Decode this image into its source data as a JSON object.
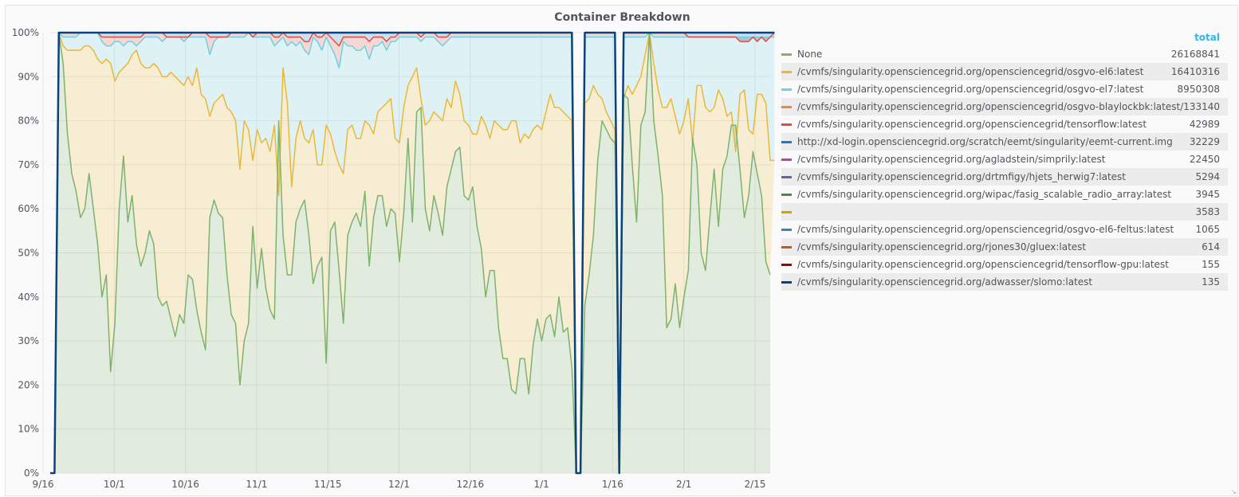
{
  "panel": {
    "title": "Container Breakdown"
  },
  "chart_data": {
    "type": "area",
    "stacking": "percent",
    "title": "Container Breakdown",
    "xlabel": "",
    "ylabel": "",
    "ylim": [
      0,
      100
    ],
    "grid": true,
    "legend_position": "right",
    "legend_value_header": "total",
    "x_ticks": [
      "9/16",
      "10/1",
      "10/16",
      "11/1",
      "11/15",
      "12/1",
      "12/16",
      "1/1",
      "1/16",
      "2/1",
      "2/15"
    ],
    "y_ticks": [
      "0%",
      "10%",
      "20%",
      "30%",
      "40%",
      "50%",
      "60%",
      "70%",
      "80%",
      "90%",
      "100%"
    ],
    "boundaries": {
      "none_top": [
        0,
        0,
        100,
        93,
        77,
        68,
        64,
        58,
        60,
        68,
        60,
        52,
        40,
        45,
        23,
        34,
        60,
        72,
        57,
        63,
        52,
        47,
        50,
        55,
        52,
        40,
        38,
        39,
        35,
        31,
        36,
        34,
        45,
        44,
        37,
        32,
        28,
        58,
        62,
        59,
        58,
        45,
        36,
        34,
        20,
        30,
        34,
        56,
        42,
        51,
        42,
        37,
        35,
        80,
        54,
        45,
        45,
        57,
        60,
        62,
        54,
        43,
        47,
        49,
        25,
        55,
        57,
        46,
        34,
        54,
        57,
        59,
        56,
        64,
        47,
        58,
        63,
        63,
        56,
        60,
        59,
        48,
        59,
        76,
        57,
        82,
        83,
        60,
        55,
        63,
        59,
        54,
        65,
        69,
        73,
        74,
        63,
        62,
        65,
        56,
        51,
        40,
        46,
        46,
        33,
        26,
        26,
        19,
        18,
        26,
        26,
        18,
        29,
        35,
        30,
        35,
        36,
        31,
        40,
        32,
        33,
        24,
        0,
        0,
        38,
        45,
        54,
        71,
        80,
        78,
        76,
        75,
        0,
        86,
        85,
        70,
        57,
        79,
        82,
        100,
        80,
        72,
        63,
        33,
        35,
        43,
        33,
        40,
        46,
        76,
        70,
        50,
        46,
        58,
        69,
        56,
        69,
        72,
        79,
        79,
        69,
        58,
        63,
        73,
        68,
        63,
        48,
        45
      ],
      "el6_top": [
        0,
        0,
        100,
        97,
        96,
        96,
        96,
        96,
        97,
        97,
        96,
        94,
        93,
        94,
        93,
        89,
        91,
        92,
        93,
        95,
        96,
        93,
        92,
        92,
        93,
        92,
        90,
        90,
        91,
        90,
        89,
        88,
        90,
        88,
        92,
        86,
        85,
        81,
        84,
        85,
        86,
        83,
        82,
        80,
        69,
        80,
        78,
        71,
        78,
        75,
        76,
        73,
        79,
        63,
        92,
        84,
        65,
        76,
        80,
        76,
        75,
        78,
        70,
        70,
        79,
        77,
        73,
        70,
        68,
        78,
        79,
        76,
        76,
        80,
        79,
        77,
        82,
        83,
        84,
        85,
        76,
        75,
        83,
        88,
        90,
        92,
        85,
        79,
        80,
        82,
        81,
        80,
        85,
        83,
        89,
        86,
        80,
        79,
        77,
        77,
        81,
        79,
        76,
        80,
        79,
        78,
        78,
        80,
        80,
        75,
        77,
        76,
        78,
        79,
        78,
        82,
        86,
        83,
        83,
        82,
        81,
        80,
        0,
        0,
        84,
        85,
        88,
        86,
        85,
        82,
        80,
        78,
        0,
        85,
        88,
        86,
        88,
        90,
        95,
        100,
        93,
        87,
        83,
        83,
        85,
        81,
        77,
        80,
        85,
        75,
        88,
        88,
        83,
        82,
        83,
        87,
        85,
        81,
        82,
        73,
        86,
        87,
        78,
        77,
        86,
        86,
        84,
        71,
        71
      ],
      "el7_top": [
        0,
        0,
        100,
        99,
        99,
        99,
        99,
        100,
        100,
        100,
        100,
        100,
        98,
        97,
        97,
        98,
        98,
        97,
        98,
        98,
        97,
        98,
        99,
        99,
        99,
        99,
        98,
        99,
        99,
        99,
        99,
        98,
        99,
        99,
        99,
        99,
        99,
        95,
        98,
        99,
        99,
        99,
        99,
        99,
        99,
        99,
        100,
        99,
        99,
        99,
        99,
        99,
        97,
        98,
        99,
        97,
        98,
        97,
        98,
        96,
        95,
        99,
        98,
        96,
        99,
        97,
        95,
        92,
        98,
        97,
        97,
        96,
        96,
        97,
        94,
        97,
        97,
        98,
        96,
        98,
        98,
        99,
        99,
        99,
        99,
        99,
        98,
        99,
        99,
        99,
        98,
        97,
        98,
        99,
        99,
        99,
        99,
        99,
        99,
        99,
        99,
        99,
        99,
        99,
        99,
        99,
        99,
        99,
        99,
        99,
        99,
        99,
        99,
        99,
        99,
        99,
        99,
        99,
        99,
        99,
        99,
        99,
        0,
        0,
        99,
        99,
        99,
        99,
        99,
        99,
        99,
        99,
        0,
        99,
        99,
        99,
        99,
        99,
        99,
        100,
        99,
        99,
        99,
        99,
        99,
        99,
        99,
        99,
        99,
        99,
        99,
        99,
        99,
        99,
        99,
        99,
        99,
        99,
        99,
        99,
        99,
        99,
        99,
        99,
        99,
        99,
        99,
        99,
        99
      ],
      "red_top": [
        0,
        0,
        100,
        100,
        100,
        100,
        100,
        100,
        100,
        100,
        100,
        100,
        99,
        99,
        99,
        99,
        99,
        99,
        99,
        99,
        99,
        99,
        100,
        100,
        100,
        100,
        100,
        99,
        99,
        99,
        99,
        99,
        99,
        100,
        100,
        100,
        100,
        99,
        99,
        99,
        99,
        99,
        100,
        100,
        100,
        100,
        100,
        99,
        100,
        100,
        100,
        100,
        99,
        99,
        100,
        99,
        99,
        99,
        99,
        98,
        98,
        100,
        99,
        99,
        100,
        99,
        98,
        97,
        99,
        99,
        99,
        99,
        99,
        99,
        98,
        99,
        99,
        99,
        98,
        99,
        99,
        100,
        100,
        100,
        100,
        100,
        99,
        100,
        100,
        100,
        99,
        99,
        99,
        100,
        100,
        100,
        100,
        100,
        100,
        100,
        100,
        100,
        100,
        100,
        100,
        100,
        100,
        100,
        100,
        100,
        100,
        100,
        100,
        100,
        100,
        100,
        100,
        100,
        100,
        100,
        100,
        100,
        0,
        0,
        100,
        100,
        100,
        100,
        100,
        100,
        100,
        100,
        0,
        100,
        100,
        100,
        100,
        100,
        100,
        100,
        100,
        100,
        100,
        100,
        100,
        100,
        100,
        100,
        99,
        99,
        99,
        99,
        99,
        99,
        99,
        99,
        99,
        99,
        99,
        99,
        98,
        98,
        98,
        99,
        98,
        99,
        98,
        99,
        100
      ],
      "navy_total": [
        0,
        0,
        100,
        100,
        100,
        100,
        100,
        100,
        100,
        100,
        100,
        100,
        100,
        100,
        100,
        100,
        100,
        100,
        100,
        100,
        100,
        100,
        100,
        100,
        100,
        100,
        100,
        100,
        100,
        100,
        100,
        100,
        100,
        100,
        100,
        100,
        100,
        100,
        100,
        100,
        100,
        100,
        100,
        100,
        100,
        100,
        100,
        100,
        100,
        100,
        100,
        100,
        100,
        100,
        100,
        100,
        100,
        100,
        100,
        100,
        100,
        100,
        100,
        100,
        100,
        100,
        100,
        100,
        100,
        100,
        100,
        100,
        100,
        100,
        100,
        100,
        100,
        100,
        100,
        100,
        100,
        100,
        100,
        100,
        100,
        100,
        100,
        100,
        100,
        100,
        100,
        100,
        100,
        100,
        100,
        100,
        100,
        100,
        100,
        100,
        100,
        100,
        100,
        100,
        100,
        100,
        100,
        100,
        100,
        100,
        100,
        100,
        100,
        100,
        100,
        100,
        100,
        100,
        100,
        100,
        100,
        100,
        0,
        0,
        100,
        100,
        100,
        100,
        100,
        100,
        100,
        100,
        0,
        100,
        100,
        100,
        100,
        100,
        100,
        100,
        100,
        100,
        100,
        100,
        100,
        100,
        100,
        100,
        100,
        100,
        100,
        100,
        100,
        100,
        100,
        100,
        100,
        100,
        100,
        100,
        100,
        100,
        100,
        100,
        100,
        100,
        100,
        100,
        100
      ]
    },
    "series": [
      {
        "name": "None",
        "color": "#7eb26d",
        "total": "26168841"
      },
      {
        "name": "/cvmfs/singularity.opensciencegrid.org/opensciencegrid/osgvo-el6:latest",
        "color": "#eab839",
        "total": "16410316"
      },
      {
        "name": "/cvmfs/singularity.opensciencegrid.org/opensciencegrid/osgvo-el7:latest",
        "color": "#6ed0e0",
        "total": "8950308"
      },
      {
        "name": "/cvmfs/singularity.opensciencegrid.org/opensciencegrid/osgvo-blaylockbk:latest/",
        "color": "#ef843c",
        "total": "133140"
      },
      {
        "name": "/cvmfs/singularity.opensciencegrid.org/opensciencegrid/tensorflow:latest",
        "color": "#e24d42",
        "total": "42989"
      },
      {
        "name": "http://xd-login.opensciencegrid.org/scratch/eemt/singularity/eemt-current.img",
        "color": "#1f78c1",
        "total": "32229"
      },
      {
        "name": "/cvmfs/singularity.opensciencegrid.org/agladstein/simprily:latest",
        "color": "#ba43a9",
        "total": "22450"
      },
      {
        "name": "/cvmfs/singularity.opensciencegrid.org/drtmfigy/hjets_herwig7:latest",
        "color": "#705da0",
        "total": "5294"
      },
      {
        "name": "/cvmfs/singularity.opensciencegrid.org/wipac/fasig_scalable_radio_array:latest",
        "color": "#508642",
        "total": "3945"
      },
      {
        "name": "",
        "color": "#cca300",
        "total": "3583"
      },
      {
        "name": "/cvmfs/singularity.opensciencegrid.org/opensciencegrid/osgvo-el6-feltus:latest",
        "color": "#447ebc",
        "total": "1065"
      },
      {
        "name": "/cvmfs/singularity.opensciencegrid.org/rjones30/gluex:latest",
        "color": "#c15c17",
        "total": "614"
      },
      {
        "name": "/cvmfs/singularity.opensciencegrid.org/opensciencegrid/tensorflow-gpu:latest",
        "color": "#890f02",
        "total": "155"
      },
      {
        "name": "/cvmfs/singularity.opensciencegrid.org/adwasser/slomo:latest",
        "color": "#0a437c",
        "total": "135"
      }
    ]
  }
}
